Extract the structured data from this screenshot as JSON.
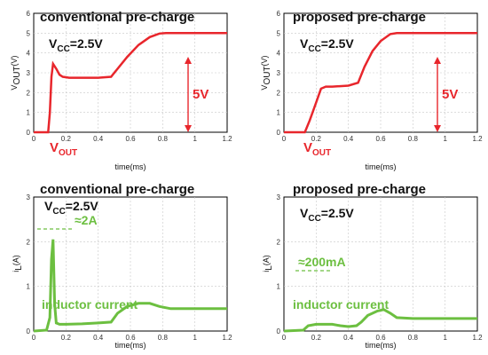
{
  "chart_data": [
    {
      "type": "line",
      "title": "conventional pre-charge",
      "vcc": {
        "main": "V",
        "sub": "CC",
        "value": "=2.5V"
      },
      "xlabel": "time(ms)",
      "ylabel": {
        "main": "V",
        "sub": "OUT",
        "unit": "(V)"
      },
      "xlim": [
        0,
        1.2
      ],
      "ylim": [
        0,
        6
      ],
      "xticks": [
        "0",
        "0.2",
        "0.4",
        "0.6",
        "0.8",
        "1",
        "1.2"
      ],
      "yticks": [
        "0",
        "1",
        "2",
        "3",
        "4",
        "5",
        "6"
      ],
      "series": [
        {
          "name": "V_OUT",
          "color": "#e8262c",
          "x": [
            0,
            0.09,
            0.1,
            0.11,
            0.12,
            0.14,
            0.16,
            0.18,
            0.22,
            0.3,
            0.4,
            0.48,
            0.52,
            0.58,
            0.65,
            0.72,
            0.78,
            0.82,
            0.9,
            1.0,
            1.1,
            1.2
          ],
          "y": [
            0,
            0,
            1.0,
            2.8,
            3.45,
            3.2,
            2.9,
            2.8,
            2.75,
            2.75,
            2.75,
            2.8,
            3.2,
            3.8,
            4.4,
            4.8,
            4.98,
            5.0,
            5.0,
            5.0,
            5.0,
            5.0
          ]
        }
      ],
      "legend_label": {
        "main": "V",
        "sub": "OUT"
      },
      "annotation": "5V"
    },
    {
      "type": "line",
      "title": "proposed pre-charge",
      "vcc": {
        "main": "V",
        "sub": "CC",
        "value": "=2.5V"
      },
      "xlabel": "time(ms)",
      "ylabel": {
        "main": "V",
        "sub": "OUT",
        "unit": "(V)"
      },
      "xlim": [
        0,
        1.2
      ],
      "ylim": [
        0,
        6
      ],
      "xticks": [
        "0",
        "0.2",
        "0.4",
        "0.6",
        "0.8",
        "1",
        "1.2"
      ],
      "yticks": [
        "0",
        "1",
        "2",
        "3",
        "4",
        "5",
        "6"
      ],
      "series": [
        {
          "name": "V_OUT",
          "color": "#e8262c",
          "x": [
            0,
            0.13,
            0.16,
            0.2,
            0.23,
            0.26,
            0.3,
            0.4,
            0.46,
            0.5,
            0.55,
            0.6,
            0.66,
            0.7,
            0.8,
            0.9,
            1.0,
            1.1,
            1.2
          ],
          "y": [
            0,
            0,
            0.6,
            1.5,
            2.2,
            2.3,
            2.3,
            2.35,
            2.5,
            3.3,
            4.1,
            4.6,
            4.95,
            5.0,
            5.0,
            5.0,
            5.0,
            5.0,
            5.0
          ]
        }
      ],
      "legend_label": {
        "main": "V",
        "sub": "OUT"
      },
      "annotation": "5V"
    },
    {
      "type": "line",
      "title": "conventional pre-charge",
      "vcc": {
        "main": "V",
        "sub": "CC",
        "value": "=2.5V"
      },
      "xlabel": "time(ms)",
      "ylabel": {
        "main": "i",
        "sub": "L",
        "unit": "(A)"
      },
      "xlim": [
        0,
        1.2
      ],
      "ylim": [
        0,
        3
      ],
      "xticks": [
        "0",
        "0.2",
        "0.4",
        "0.6",
        "0.8",
        "1",
        "1.2"
      ],
      "yticks": [
        "0",
        "1",
        "2",
        "3"
      ],
      "series": [
        {
          "name": "inductor current",
          "color": "#6cbf40",
          "x": [
            0,
            0.08,
            0.1,
            0.11,
            0.12,
            0.13,
            0.14,
            0.16,
            0.2,
            0.3,
            0.4,
            0.48,
            0.52,
            0.58,
            0.65,
            0.72,
            0.78,
            0.85,
            0.9,
            1.0,
            1.1,
            1.2
          ],
          "y": [
            0,
            0.02,
            0.3,
            1.6,
            2.05,
            0.6,
            0.18,
            0.15,
            0.15,
            0.16,
            0.18,
            0.2,
            0.4,
            0.55,
            0.62,
            0.62,
            0.55,
            0.5,
            0.5,
            0.5,
            0.5,
            0.5
          ]
        }
      ],
      "annotation": "≈2A",
      "legend_label": "inductor current"
    },
    {
      "type": "line",
      "title": "proposed pre-charge",
      "vcc": {
        "main": "V",
        "sub": "CC",
        "value": "=2.5V"
      },
      "xlabel": "time(ms)",
      "ylabel": {
        "main": "i",
        "sub": "L",
        "unit": "(A)"
      },
      "xlim": [
        0,
        1.2
      ],
      "ylim": [
        0,
        3
      ],
      "xticks": [
        "0",
        "0.2",
        "0.4",
        "0.6",
        "0.8",
        "1",
        "1.2"
      ],
      "yticks": [
        "0",
        "1",
        "2",
        "3"
      ],
      "series": [
        {
          "name": "inductor current",
          "color": "#6cbf40",
          "x": [
            0,
            0.12,
            0.15,
            0.2,
            0.25,
            0.3,
            0.35,
            0.4,
            0.45,
            0.48,
            0.52,
            0.58,
            0.62,
            0.66,
            0.7,
            0.8,
            0.9,
            1.0,
            1.1,
            1.2
          ],
          "y": [
            0,
            0.02,
            0.12,
            0.15,
            0.15,
            0.15,
            0.12,
            0.1,
            0.12,
            0.2,
            0.35,
            0.45,
            0.48,
            0.4,
            0.3,
            0.28,
            0.28,
            0.28,
            0.28,
            0.28
          ]
        }
      ],
      "annotation": "≈200mA",
      "legend_label": "inductor current"
    }
  ]
}
